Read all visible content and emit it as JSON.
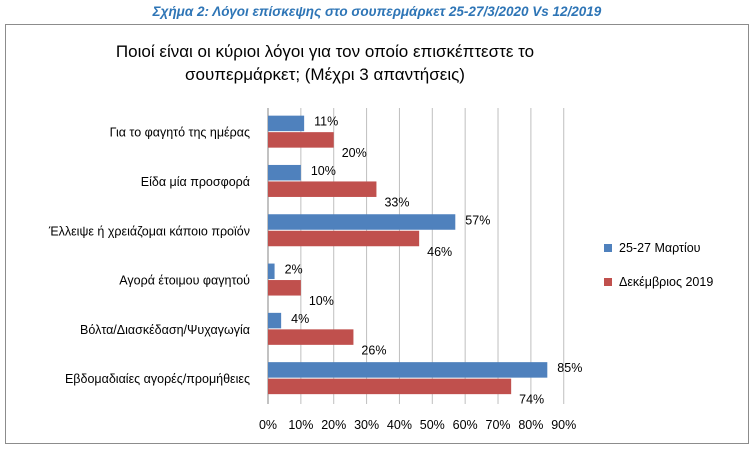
{
  "caption": "Σχήμα 2: Λόγοι επίσκεψης στο σουπερμάρκετ 25-27/3/2020 Vs 12/2019",
  "chart_data": {
    "type": "bar",
    "orientation": "horizontal",
    "title": "Ποιοί είναι οι κύριοι λόγοι για τον οποίο επισκέπτεστε το σουπερμάρκετ; (Μέχρι 3 απαντήσεις)",
    "title_lines": [
      "Ποιοί είναι οι κύριοι λόγοι για τον οποίο επισκέπτεστε το",
      "σουπερμάρκετ; (Μέχρι 3 απαντήσεις)"
    ],
    "categories": [
      "Για το φαγητό της ημέρας",
      "Είδα μία προσφορά",
      "Έλλειψε ή χρειάζομαι κάποιο προϊόν",
      "Αγορά έτοιμου φαγητού",
      "Βόλτα/Διασκέδαση/Ψυχαγωγία",
      "Εβδομαδιαίες αγορές/προμήθειες"
    ],
    "series": [
      {
        "name": "25-27 Μαρτίου",
        "color": "#4f81bd",
        "values": [
          11,
          10,
          57,
          2,
          4,
          85
        ]
      },
      {
        "name": "Δεκέμβριος 2019",
        "color": "#c0504d",
        "values": [
          20,
          33,
          46,
          10,
          26,
          74
        ]
      }
    ],
    "value_suffix": "%",
    "xlim": [
      0,
      90
    ],
    "xticks": [
      0,
      10,
      20,
      30,
      40,
      50,
      60,
      70,
      80,
      90
    ],
    "xtick_labels": [
      "0%",
      "10%",
      "20%",
      "30%",
      "40%",
      "50%",
      "60%",
      "70%",
      "80%",
      "90%"
    ],
    "grid": "vertical",
    "legend": "right"
  }
}
